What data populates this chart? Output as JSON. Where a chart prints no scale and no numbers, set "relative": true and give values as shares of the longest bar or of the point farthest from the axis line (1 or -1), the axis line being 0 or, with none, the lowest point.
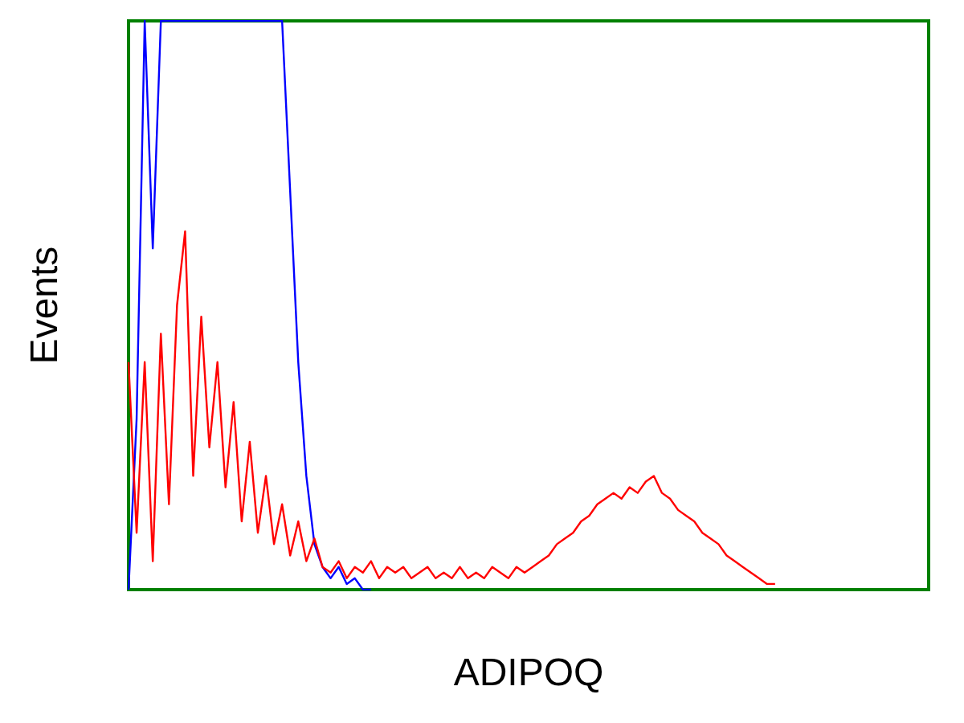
{
  "chart_data": {
    "type": "line",
    "relative": true,
    "xlabel": "ADIPOQ",
    "ylabel": "Events",
    "grid": false,
    "categories": [
      null,
      null,
      null,
      null,
      null,
      null,
      null,
      null,
      null,
      null,
      null,
      null,
      null,
      null,
      null,
      null,
      null,
      null,
      null,
      null,
      null,
      null,
      null,
      null,
      null,
      null,
      null,
      null,
      null,
      null,
      null,
      null,
      null,
      null,
      null,
      null,
      null,
      null,
      null,
      null,
      null,
      null,
      null,
      null,
      null,
      null,
      null,
      null,
      null,
      null,
      null,
      null,
      null,
      null,
      null,
      null,
      null,
      null,
      null,
      null,
      null,
      null,
      null,
      null,
      null,
      null,
      null,
      null,
      null,
      null,
      null,
      null,
      null,
      null,
      null,
      null,
      null,
      null,
      null,
      null,
      null,
      null,
      null,
      null,
      null,
      null,
      null,
      null,
      null,
      null,
      null,
      null,
      null,
      null,
      null,
      null,
      null,
      null,
      null,
      null
    ],
    "series": [
      {
        "color": "#0000ff",
        "values": [
          0,
          0.3,
          1,
          0.6,
          1,
          1,
          1,
          1,
          1,
          1,
          1,
          1,
          1,
          1,
          1,
          1,
          1,
          1,
          1,
          1,
          0.7,
          0.4,
          0.2,
          0.08,
          0.04,
          0.02,
          0.04,
          0.01,
          0.02,
          0,
          0,
          null,
          null,
          null,
          null,
          null,
          null,
          null,
          null,
          null,
          null,
          null,
          null,
          null,
          null,
          null,
          null,
          null,
          null,
          null,
          null,
          null,
          null,
          null,
          null,
          null,
          null,
          null,
          null,
          null,
          null,
          null,
          null,
          null,
          null,
          null,
          null,
          null,
          null,
          null,
          null,
          null,
          null,
          null,
          null,
          null,
          null,
          null,
          null,
          null,
          null,
          null,
          null,
          null,
          null,
          null,
          null,
          null,
          null,
          null,
          null,
          null,
          null,
          null,
          null,
          null,
          null,
          null,
          null,
          null
        ]
      },
      {
        "color": "#ff0000",
        "values": [
          0.4,
          0.1,
          0.4,
          0.05,
          0.45,
          0.15,
          0.5,
          0.63,
          0.2,
          0.48,
          0.25,
          0.4,
          0.18,
          0.33,
          0.12,
          0.26,
          0.1,
          0.2,
          0.08,
          0.15,
          0.06,
          0.12,
          0.05,
          0.09,
          0.04,
          0.03,
          0.05,
          0.02,
          0.04,
          0.03,
          0.05,
          0.02,
          0.04,
          0.03,
          0.04,
          0.02,
          0.03,
          0.04,
          0.02,
          0.03,
          0.02,
          0.04,
          0.02,
          0.03,
          0.02,
          0.04,
          0.03,
          0.02,
          0.04,
          0.03,
          0.04,
          0.05,
          0.06,
          0.08,
          0.09,
          0.1,
          0.12,
          0.13,
          0.15,
          0.16,
          0.17,
          0.16,
          0.18,
          0.17,
          0.19,
          0.2,
          0.17,
          0.16,
          0.14,
          0.13,
          0.12,
          0.1,
          0.09,
          0.08,
          0.06,
          0.05,
          0.04,
          0.03,
          0.02,
          0.01,
          0.01,
          null,
          null,
          null,
          null,
          null,
          null,
          null,
          null,
          null,
          null,
          null,
          null,
          null,
          null,
          null,
          null,
          null,
          null,
          null
        ]
      }
    ]
  }
}
